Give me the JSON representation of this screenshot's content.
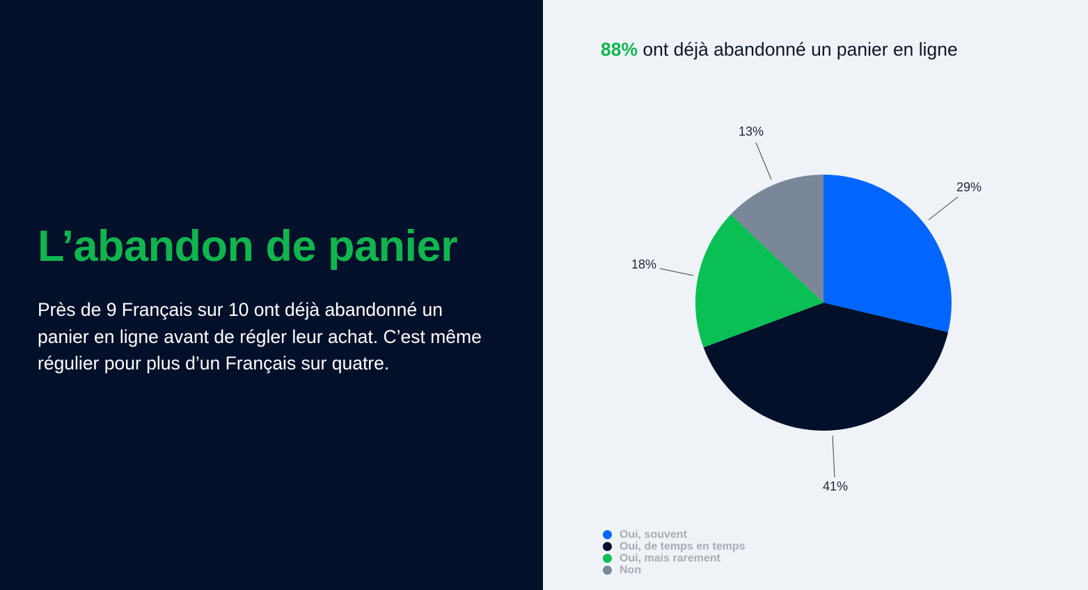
{
  "left_panel": {
    "headline": "L’abandon de panier",
    "body": "Près de 9 Français sur 10 ont déjà abandonné un panier en ligne avant de régler leur achat. C’est même régulier pour plus d’un Français sur quatre."
  },
  "right_panel": {
    "title_highlight": "88%",
    "title_rest": " ont déjà abandonné un panier en ligne"
  },
  "colors": {
    "left_background": "#02102a",
    "right_background": "#eff3f8",
    "accent_green": "#10b54e"
  },
  "chart_data": {
    "type": "pie",
    "title": "88% ont déjà abandonné un panier en ligne",
    "start_angle_deg": 0,
    "direction": "clockwise",
    "categories": [
      "Oui, souvent",
      "Oui, de temps en temps",
      "Oui, mais rarement",
      "Non"
    ],
    "values": [
      29,
      41,
      18,
      13
    ],
    "labels": [
      "29%",
      "41%",
      "18%",
      "13%"
    ],
    "colors": [
      "#0066ff",
      "#02102a",
      "#0abf53",
      "#7a8799"
    ],
    "legend_position": "bottom-left"
  },
  "legend": {
    "items": [
      {
        "label": "Oui, souvent",
        "color": "#0066ff"
      },
      {
        "label": "Oui, de temps en temps",
        "color": "#02102a"
      },
      {
        "label": "Oui, mais rarement",
        "color": "#0abf53"
      },
      {
        "label": "Non",
        "color": "#7a8799"
      }
    ]
  }
}
